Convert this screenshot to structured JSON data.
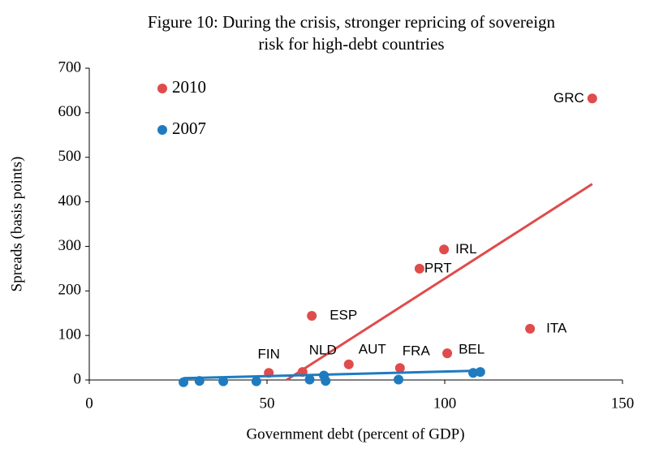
{
  "chart_data": {
    "type": "scatter",
    "title": "Figure 10: During the crisis, stronger repricing of sovereign risk for high-debt countries",
    "xlabel": "Government debt (percent of GDP)",
    "ylabel": "Spreads  (basis points)",
    "xlim": [
      0,
      150
    ],
    "xticks": [
      0,
      50,
      100,
      150
    ],
    "ylim": [
      0,
      700
    ],
    "yticks": [
      0,
      100,
      200,
      300,
      400,
      500,
      600,
      700
    ],
    "legend": "top-left",
    "series": [
      {
        "name": "2010",
        "color": "#e04b4b",
        "x": [
          50.5,
          60,
          73,
          87.4,
          100.7,
          124,
          99.8,
          92.9,
          62.6,
          141.5
        ],
        "values": [
          16,
          18,
          35,
          27,
          60,
          115,
          293,
          250,
          144,
          632
        ],
        "labels": [
          "FIN",
          "NLD",
          "AUT",
          "FRA",
          "BEL",
          "ITA",
          "IRL",
          "PRT",
          "ESP",
          "GRC"
        ],
        "trend": {
          "x": [
            55.5,
            141.5
          ],
          "values": [
            0,
            440
          ]
        }
      },
      {
        "name": "2007",
        "color": "#1f7bc0",
        "x": [
          26.5,
          31,
          37.7,
          47,
          62,
          66,
          66.5,
          87,
          108,
          110
        ],
        "values": [
          -5,
          -2,
          -3,
          -3,
          1,
          10,
          -2,
          1,
          16,
          18
        ],
        "trend": {
          "x": [
            26.5,
            110
          ],
          "values": [
            4,
            21
          ]
        }
      }
    ]
  }
}
